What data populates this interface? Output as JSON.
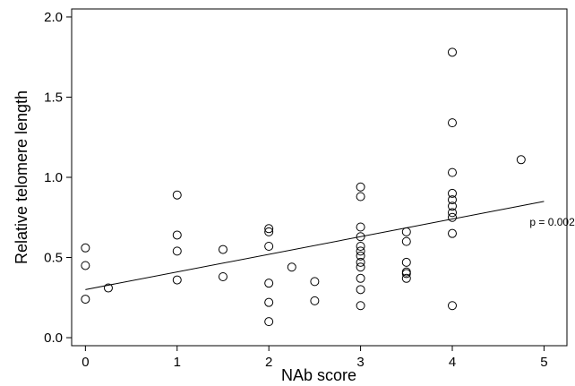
{
  "chart_data": {
    "type": "scatter",
    "title": "",
    "xlabel": "NAb score",
    "ylabel": "Relative telomere length",
    "xlim": [
      -0.15,
      5.25
    ],
    "ylim": [
      -0.05,
      2.05
    ],
    "xticks": [
      0,
      1,
      2,
      3,
      4,
      5
    ],
    "yticks": [
      0.0,
      0.5,
      1.0,
      1.5,
      2.0
    ],
    "xtick_labels": [
      "0",
      "1",
      "2",
      "3",
      "4",
      "5"
    ],
    "ytick_labels": [
      "0.0",
      "0.5",
      "1.0",
      "1.5",
      "2.0"
    ],
    "grid": false,
    "legend": "none",
    "points": [
      {
        "x": 0,
        "y": 0.56
      },
      {
        "x": 0,
        "y": 0.45
      },
      {
        "x": 0,
        "y": 0.24
      },
      {
        "x": 0.25,
        "y": 0.31
      },
      {
        "x": 1,
        "y": 0.89
      },
      {
        "x": 1,
        "y": 0.64
      },
      {
        "x": 1,
        "y": 0.54
      },
      {
        "x": 1,
        "y": 0.36
      },
      {
        "x": 1.5,
        "y": 0.55
      },
      {
        "x": 1.5,
        "y": 0.38
      },
      {
        "x": 2,
        "y": 0.68
      },
      {
        "x": 2,
        "y": 0.66
      },
      {
        "x": 2,
        "y": 0.57
      },
      {
        "x": 2,
        "y": 0.34
      },
      {
        "x": 2,
        "y": 0.22
      },
      {
        "x": 2,
        "y": 0.1
      },
      {
        "x": 2.25,
        "y": 0.44
      },
      {
        "x": 2.5,
        "y": 0.35
      },
      {
        "x": 2.5,
        "y": 0.23
      },
      {
        "x": 3,
        "y": 0.94
      },
      {
        "x": 3,
        "y": 0.88
      },
      {
        "x": 3,
        "y": 0.69
      },
      {
        "x": 3,
        "y": 0.63
      },
      {
        "x": 3,
        "y": 0.57
      },
      {
        "x": 3,
        "y": 0.54
      },
      {
        "x": 3,
        "y": 0.51
      },
      {
        "x": 3,
        "y": 0.47
      },
      {
        "x": 3,
        "y": 0.44
      },
      {
        "x": 3,
        "y": 0.37
      },
      {
        "x": 3,
        "y": 0.3
      },
      {
        "x": 3,
        "y": 0.2
      },
      {
        "x": 3.5,
        "y": 0.66
      },
      {
        "x": 3.5,
        "y": 0.6
      },
      {
        "x": 3.5,
        "y": 0.47
      },
      {
        "x": 3.5,
        "y": 0.41
      },
      {
        "x": 3.5,
        "y": 0.4
      },
      {
        "x": 3.5,
        "y": 0.37
      },
      {
        "x": 4,
        "y": 1.78
      },
      {
        "x": 4,
        "y": 1.34
      },
      {
        "x": 4,
        "y": 1.03
      },
      {
        "x": 4,
        "y": 0.9
      },
      {
        "x": 4,
        "y": 0.86
      },
      {
        "x": 4,
        "y": 0.82
      },
      {
        "x": 4,
        "y": 0.78
      },
      {
        "x": 4,
        "y": 0.75
      },
      {
        "x": 4,
        "y": 0.65
      },
      {
        "x": 4,
        "y": 0.2
      },
      {
        "x": 4.75,
        "y": 1.11
      }
    ],
    "regression_line": {
      "x": [
        0,
        5
      ],
      "y": [
        0.3,
        0.85
      ]
    },
    "annotation": {
      "text": "p = 0.002",
      "x": 5.0,
      "y": 0.72
    }
  }
}
